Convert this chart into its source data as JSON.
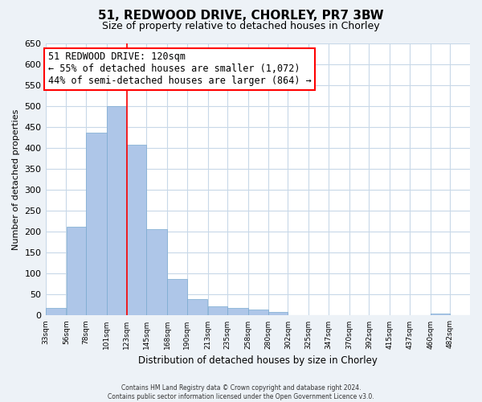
{
  "title": "51, REDWOOD DRIVE, CHORLEY, PR7 3BW",
  "subtitle": "Size of property relative to detached houses in Chorley",
  "xlabel": "Distribution of detached houses by size in Chorley",
  "ylabel": "Number of detached properties",
  "bar_left_edges": [
    33,
    56,
    78,
    101,
    123,
    145,
    168,
    190,
    213,
    235,
    258,
    280,
    302,
    325,
    347,
    370,
    392,
    415,
    437,
    460
  ],
  "bar_heights": [
    18,
    213,
    437,
    500,
    408,
    207,
    87,
    40,
    22,
    19,
    14,
    9,
    0,
    0,
    0,
    0,
    0,
    0,
    0,
    5
  ],
  "bar_widths": [
    23,
    22,
    23,
    22,
    22,
    23,
    22,
    23,
    22,
    23,
    22,
    22,
    23,
    22,
    23,
    22,
    23,
    22,
    23,
    22
  ],
  "tick_labels": [
    "33sqm",
    "56sqm",
    "78sqm",
    "101sqm",
    "123sqm",
    "145sqm",
    "168sqm",
    "190sqm",
    "213sqm",
    "235sqm",
    "258sqm",
    "280sqm",
    "302sqm",
    "325sqm",
    "347sqm",
    "370sqm",
    "392sqm",
    "415sqm",
    "437sqm",
    "460sqm",
    "482sqm"
  ],
  "tick_positions": [
    33,
    56,
    78,
    101,
    123,
    145,
    168,
    190,
    213,
    235,
    258,
    280,
    302,
    325,
    347,
    370,
    392,
    415,
    437,
    460,
    482
  ],
  "bar_color": "#aec6e8",
  "bar_edge_color": "#7aaad0",
  "grid_color": "#c8d8e8",
  "property_line_x": 123,
  "annotation_line1": "51 REDWOOD DRIVE: 120sqm",
  "annotation_line2": "← 55% of detached houses are smaller (1,072)",
  "annotation_line3": "44% of semi-detached houses are larger (864) →",
  "ylim": [
    0,
    650
  ],
  "xlim": [
    33,
    504
  ],
  "yticks": [
    0,
    50,
    100,
    150,
    200,
    250,
    300,
    350,
    400,
    450,
    500,
    550,
    600,
    650
  ],
  "footer_line1": "Contains HM Land Registry data © Crown copyright and database right 2024.",
  "footer_line2": "Contains public sector information licensed under the Open Government Licence v3.0.",
  "bg_color": "#edf2f7",
  "plot_bg_color": "#ffffff",
  "ann_font_size": 8.5,
  "title_fontsize": 11,
  "subtitle_fontsize": 9
}
